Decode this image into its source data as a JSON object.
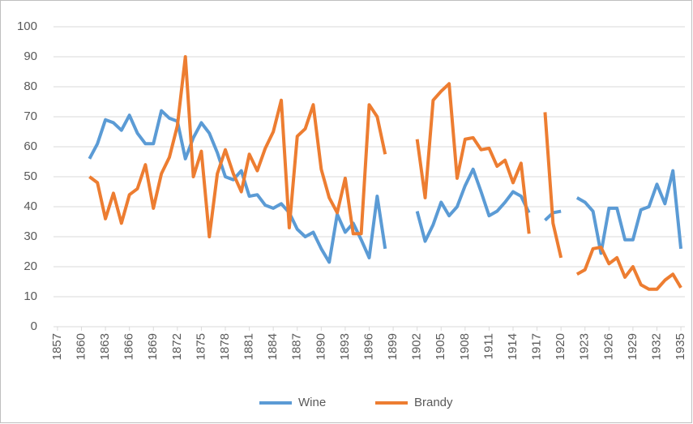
{
  "chart_data": {
    "type": "line",
    "x": [
      1857,
      1858,
      1859,
      1860,
      1861,
      1862,
      1863,
      1864,
      1865,
      1866,
      1867,
      1868,
      1869,
      1870,
      1871,
      1872,
      1873,
      1874,
      1875,
      1876,
      1877,
      1878,
      1879,
      1880,
      1881,
      1882,
      1883,
      1884,
      1885,
      1886,
      1887,
      1888,
      1889,
      1890,
      1891,
      1892,
      1893,
      1894,
      1895,
      1896,
      1897,
      1898,
      1899,
      1900,
      1901,
      1902,
      1903,
      1904,
      1905,
      1906,
      1907,
      1908,
      1909,
      1910,
      1911,
      1912,
      1913,
      1914,
      1915,
      1916,
      1917,
      1918,
      1919,
      1920,
      1921,
      1922,
      1923,
      1924,
      1925,
      1926,
      1927,
      1928,
      1929,
      1930,
      1931,
      1932,
      1933,
      1934,
      1935
    ],
    "series": [
      {
        "name": "Wine",
        "color": "#5b9bd5",
        "values": [
          null,
          null,
          null,
          null,
          56,
          61,
          69,
          68,
          65.5,
          70.5,
          64.5,
          61,
          61,
          72,
          69.5,
          68.5,
          56,
          63,
          68,
          64.5,
          58,
          50,
          49,
          52,
          43.5,
          44,
          40.5,
          39.5,
          41,
          38,
          32.5,
          30,
          31.5,
          26,
          21.5,
          37.5,
          31.5,
          34.5,
          29,
          23,
          43.5,
          26,
          null,
          null,
          null,
          38.5,
          28.5,
          34,
          41.5,
          37,
          40,
          47,
          52.5,
          45,
          37,
          38.5,
          41.5,
          45,
          43.5,
          38,
          null,
          35.5,
          38,
          38.5,
          null,
          43,
          41.5,
          38.5,
          24.5,
          39.5,
          39.5,
          29,
          29,
          39,
          40,
          47.5,
          41,
          52,
          26
        ]
      },
      {
        "name": "Brandy",
        "color": "#ed7d31",
        "values": [
          null,
          null,
          null,
          null,
          50,
          48,
          36,
          44.5,
          34.5,
          44,
          46,
          54,
          39.5,
          51,
          56.5,
          67,
          90,
          50,
          58.5,
          30,
          51,
          59,
          51,
          45,
          57.5,
          52,
          59.5,
          65,
          75.5,
          33,
          63.5,
          66,
          74,
          52.5,
          43,
          38,
          49.5,
          31,
          31,
          74,
          70,
          57.5,
          null,
          null,
          null,
          62.5,
          43,
          75.5,
          78.5,
          81,
          49.5,
          62.5,
          63,
          59,
          59.5,
          53.5,
          55.5,
          48,
          54.5,
          31,
          null,
          71.5,
          34.5,
          23,
          null,
          17.5,
          19,
          26,
          26.5,
          21,
          23,
          16.5,
          20,
          14,
          12.5,
          12.5,
          15.5,
          17.5,
          13
        ]
      }
    ],
    "xlim": [
      1856.5,
      1935.5
    ],
    "xticks": [
      1857,
      1860,
      1863,
      1866,
      1869,
      1872,
      1875,
      1878,
      1881,
      1884,
      1887,
      1890,
      1893,
      1896,
      1899,
      1902,
      1905,
      1908,
      1911,
      1914,
      1917,
      1920,
      1923,
      1926,
      1929,
      1932,
      1935
    ],
    "ylim": [
      0,
      100
    ],
    "yticks": [
      0,
      10,
      20,
      30,
      40,
      50,
      60,
      70,
      80,
      90,
      100
    ],
    "grid": true,
    "legend": "bottom"
  }
}
